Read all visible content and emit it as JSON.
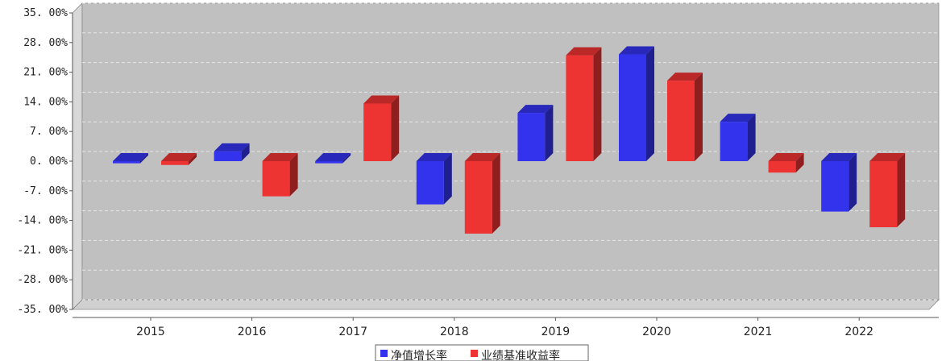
{
  "chart_data": {
    "type": "bar",
    "categories": [
      "2015",
      "2016",
      "2017",
      "2018",
      "2019",
      "2020",
      "2021",
      "2022"
    ],
    "series": [
      {
        "name": "净值增长率",
        "color": "#3333ee",
        "values": [
          -0.5,
          2.3,
          -0.5,
          -10.2,
          11.4,
          25.2,
          9.3,
          -11.9
        ]
      },
      {
        "name": "业绩基准收益率",
        "color": "#ee3333",
        "values": [
          -0.9,
          -8.3,
          13.6,
          -17.1,
          25.0,
          19.0,
          -2.7,
          -15.6
        ]
      }
    ],
    "ylim": [
      -35,
      35
    ],
    "yticks": [
      "35. 00%",
      "28. 00%",
      "21. 00%",
      "14. 00%",
      "7. 00%",
      "0. 00%",
      "-7. 00%",
      "-14. 00%",
      "-21. 00%",
      "-28. 00%",
      "-35. 00%"
    ],
    "legend": "bottom-center",
    "grid": true
  }
}
